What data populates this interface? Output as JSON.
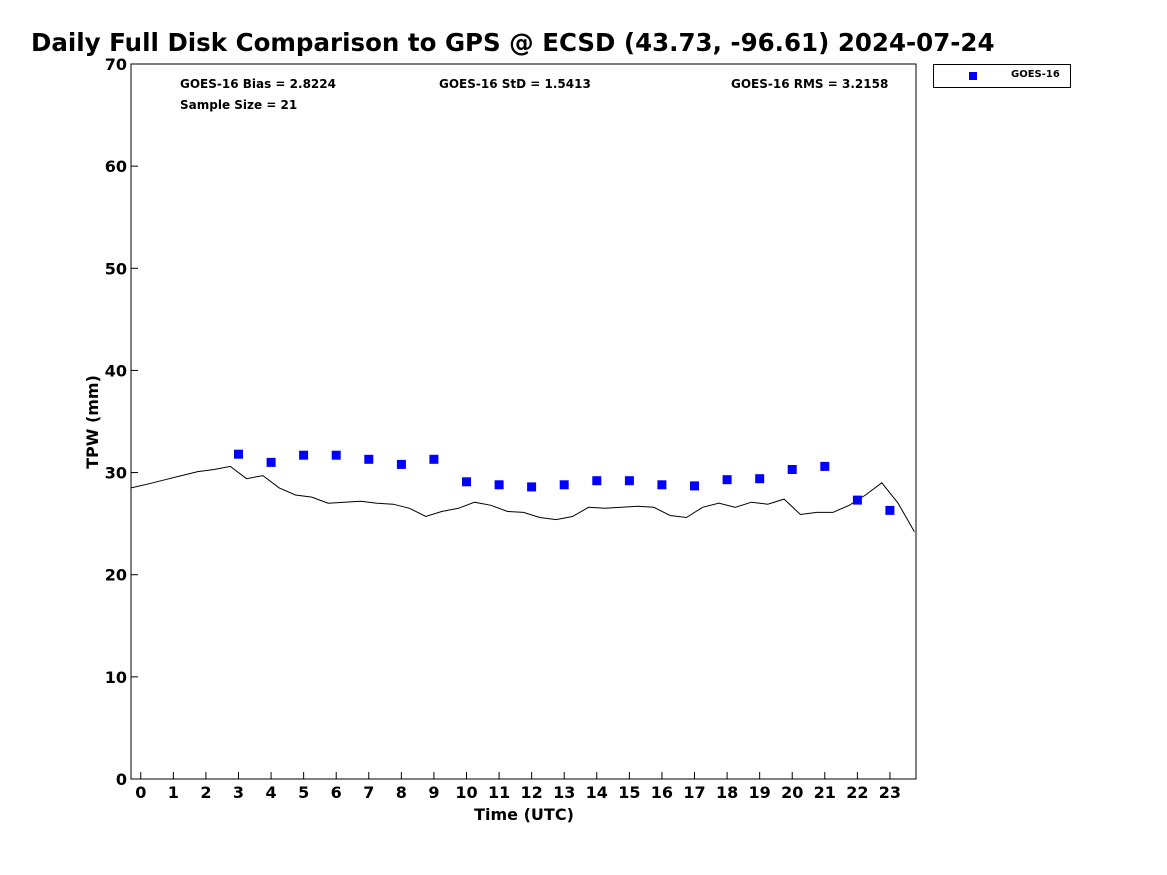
{
  "chart_data": {
    "type": "scatter",
    "title": "Daily Full Disk Comparison to GPS @ ECSD (43.73, -96.61) 2024-07-24",
    "xlabel": "Time (UTC)",
    "ylabel": "TPW (mm)",
    "xlim": [
      -0.3,
      23.8
    ],
    "ylim": [
      0,
      70
    ],
    "x_ticks": [
      "0",
      "1",
      "2",
      "3",
      "4",
      "5",
      "6",
      "7",
      "8",
      "9",
      "10",
      "11",
      "12",
      "13",
      "14",
      "15",
      "16",
      "17",
      "18",
      "19",
      "20",
      "21",
      "22",
      "23"
    ],
    "y_ticks": [
      "0",
      "10",
      "20",
      "30",
      "40",
      "50",
      "60",
      "70"
    ],
    "grid": false,
    "legend_position": "top-right",
    "stats": {
      "bias": "GOES-16 Bias = 2.8224",
      "std": "GOES-16 StD = 1.5413",
      "rms": "GOES-16 RMS = 3.2158",
      "sample_size": "Sample Size = 21"
    },
    "series": [
      {
        "name": "GOES-16",
        "kind": "scatter",
        "color": "#0000ff",
        "x": [
          3,
          4,
          5,
          6,
          7,
          8,
          9,
          10,
          11,
          12,
          13,
          14,
          15,
          16,
          17,
          18,
          19,
          20,
          21,
          22,
          23
        ],
        "y": [
          31.8,
          31.0,
          31.7,
          31.7,
          31.3,
          30.8,
          31.3,
          29.1,
          28.8,
          28.6,
          28.8,
          29.2,
          29.2,
          28.8,
          28.7,
          29.3,
          29.4,
          30.3,
          30.6,
          27.3,
          26.3
        ]
      },
      {
        "kind": "line",
        "color": "#000000",
        "x": [
          -0.3,
          0.25,
          0.75,
          1.25,
          1.75,
          2.25,
          2.75,
          3.25,
          3.75,
          4.25,
          4.75,
          5.25,
          5.75,
          6.25,
          6.75,
          7.25,
          7.75,
          8.25,
          8.75,
          9.25,
          9.75,
          10.25,
          10.75,
          11.25,
          11.75,
          12.25,
          12.75,
          13.25,
          13.75,
          14.25,
          14.75,
          15.25,
          15.75,
          16.25,
          16.75,
          17.25,
          17.75,
          18.25,
          18.75,
          19.25,
          19.75,
          20.25,
          20.75,
          21.25,
          21.75,
          22.25,
          22.75,
          23.25,
          23.75
        ],
        "y": [
          28.5,
          28.9,
          29.3,
          29.7,
          30.1,
          30.3,
          30.6,
          29.4,
          29.7,
          28.5,
          27.8,
          27.6,
          27.0,
          27.1,
          27.2,
          27.0,
          26.9,
          26.5,
          25.7,
          26.2,
          26.5,
          27.1,
          26.8,
          26.2,
          26.1,
          25.6,
          25.4,
          25.7,
          26.6,
          26.5,
          26.6,
          26.7,
          26.6,
          25.8,
          25.6,
          26.6,
          27.0,
          26.6,
          27.1,
          26.9,
          27.4,
          25.9,
          26.1,
          26.1,
          26.8,
          27.8,
          29.0,
          27.0,
          24.2
        ]
      }
    ]
  }
}
